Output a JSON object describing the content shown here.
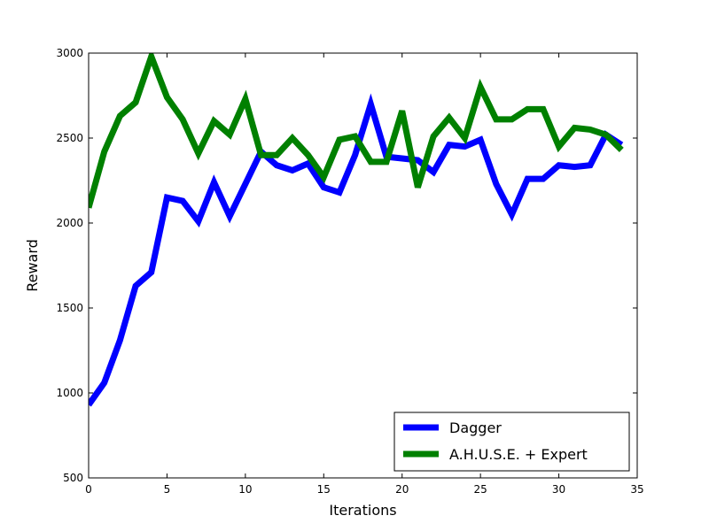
{
  "chart_data": {
    "type": "line",
    "xlabel": "Iterations",
    "ylabel": "Reward",
    "xlim": [
      0,
      35
    ],
    "ylim": [
      500,
      3000
    ],
    "xticks": [
      0,
      5,
      10,
      15,
      20,
      25,
      30,
      35
    ],
    "yticks": [
      500,
      1000,
      1500,
      2000,
      2500,
      3000
    ],
    "grid": false,
    "legend_position": "bottom-right",
    "x": [
      0,
      1,
      2,
      3,
      4,
      5,
      6,
      7,
      8,
      9,
      10,
      11,
      12,
      13,
      14,
      15,
      16,
      17,
      18,
      19,
      20,
      21,
      22,
      23,
      24,
      25,
      26,
      27,
      28,
      29,
      30,
      31,
      32,
      33,
      34
    ],
    "series": [
      {
        "name": "Dagger",
        "color": "#0000ff",
        "values": [
          930,
          1060,
          1310,
          1630,
          1710,
          2150,
          2130,
          2010,
          2240,
          2040,
          2230,
          2420,
          2340,
          2310,
          2350,
          2210,
          2180,
          2400,
          2700,
          2390,
          2380,
          2370,
          2300,
          2460,
          2450,
          2490,
          2230,
          2050,
          2260,
          2260,
          2340,
          2330,
          2340,
          2520,
          2460
        ]
      },
      {
        "name": "A.H.U.S.E. + Expert",
        "color": "#008000",
        "values": [
          2090,
          2420,
          2630,
          2710,
          2980,
          2740,
          2610,
          2410,
          2600,
          2520,
          2730,
          2400,
          2400,
          2500,
          2400,
          2270,
          2490,
          2510,
          2360,
          2360,
          2660,
          2210,
          2510,
          2620,
          2500,
          2800,
          2610,
          2610,
          2670,
          2670,
          2450,
          2560,
          2550,
          2520,
          2430
        ]
      }
    ]
  }
}
